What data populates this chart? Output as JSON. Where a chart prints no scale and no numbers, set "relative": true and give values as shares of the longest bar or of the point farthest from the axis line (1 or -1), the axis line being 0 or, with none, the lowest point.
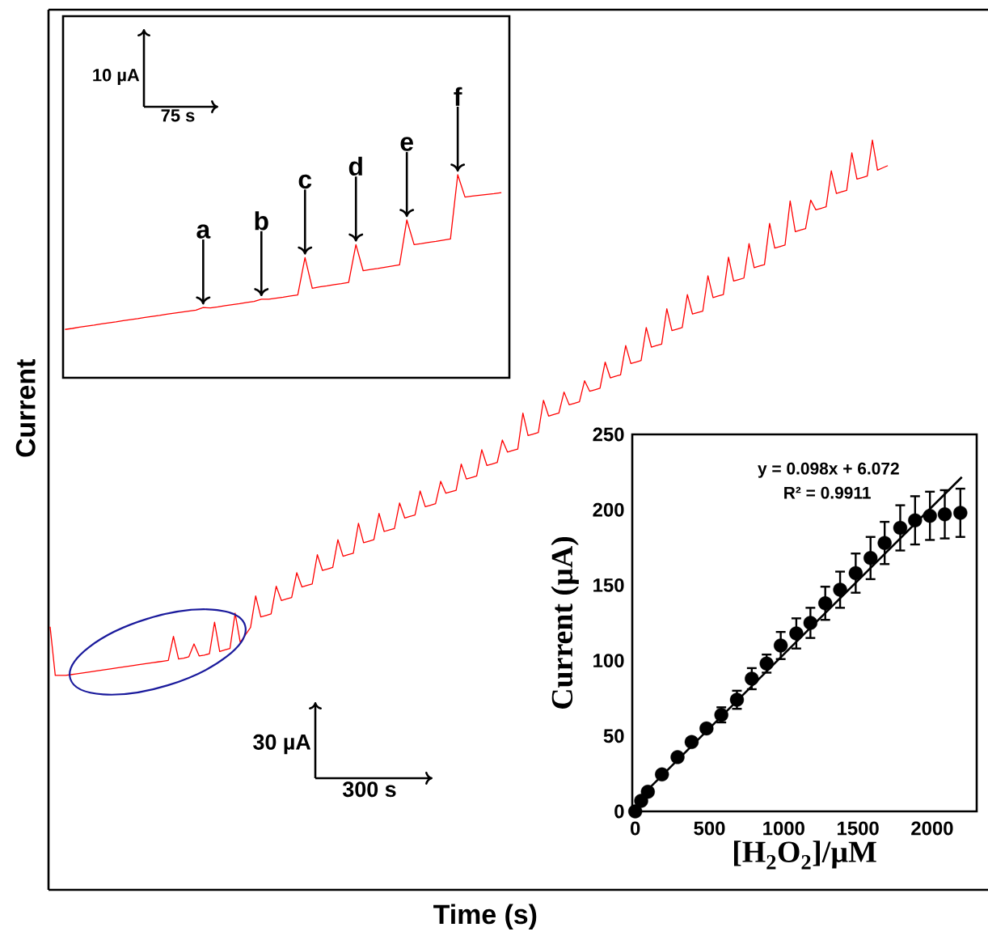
{
  "chart_data": [
    {
      "type": "line",
      "relative": true,
      "xlabel": "Time (s)",
      "ylabel": "Current",
      "categories": [
        null,
        null,
        null,
        null,
        null,
        null,
        null,
        null,
        null,
        null,
        null,
        null,
        null,
        null,
        null,
        null,
        null,
        null,
        null,
        null,
        null,
        null,
        null,
        null,
        null,
        null,
        null,
        null,
        null,
        null,
        null,
        null,
        null,
        null,
        null,
        null,
        null,
        null,
        null,
        null,
        null,
        null,
        null,
        null,
        null,
        null,
        null,
        null,
        null,
        null,
        null,
        null,
        null,
        null,
        null,
        null,
        null,
        null,
        null,
        null,
        null,
        null,
        null,
        null,
        null,
        null,
        null,
        null,
        null,
        null,
        null,
        null,
        null,
        null,
        null,
        null,
        null,
        null,
        null,
        null,
        null,
        null,
        null,
        null,
        null,
        null,
        null,
        null,
        null,
        null,
        null,
        null,
        null,
        null,
        null,
        null,
        null,
        null,
        null,
        null,
        null,
        null,
        null,
        null,
        null,
        null,
        null,
        null,
        null,
        null,
        null,
        null,
        null,
        null,
        null,
        null,
        null,
        null,
        null,
        null,
        null,
        null,
        null,
        null,
        null,
        null,
        null,
        null,
        null,
        null,
        null,
        null,
        null,
        null,
        null,
        null,
        null,
        null,
        null,
        null,
        null,
        null,
        null,
        null,
        null,
        null,
        null,
        null,
        null,
        null,
        null,
        null,
        null,
        null,
        null,
        null,
        null,
        null,
        null,
        null,
        null,
        null,
        null,
        null
      ],
      "series": [
        {
          "color": "#ff0000",
          "values": [
            0.351,
            0.286,
            0.286,
            0.286,
            0.287,
            0.288,
            0.289,
            0.29,
            0.291,
            0.292,
            0.293,
            0.294,
            0.295,
            0.296,
            0.297,
            0.298,
            0.299,
            0.3,
            0.301,
            0.302,
            0.303,
            0.304,
            0.305,
            0.306,
            0.338,
            0.308,
            0.309,
            0.311,
            0.328,
            0.312,
            0.313,
            0.315,
            0.357,
            0.318,
            0.32,
            0.322,
            0.369,
            0.33,
            0.34,
            0.35,
            0.392,
            0.364,
            0.366,
            0.368,
            0.405,
            0.386,
            0.388,
            0.39,
            0.423,
            0.404,
            0.406,
            0.408,
            0.447,
            0.426,
            0.428,
            0.43,
            0.467,
            0.445,
            0.447,
            0.449,
            0.489,
            0.463,
            0.465,
            0.467,
            0.502,
            0.478,
            0.48,
            0.482,
            0.516,
            0.496,
            0.498,
            0.5,
            0.532,
            0.511,
            0.513,
            0.515,
            0.545,
            0.529,
            0.531,
            0.533,
            0.568,
            0.548,
            0.55,
            0.552,
            0.587,
            0.566,
            0.568,
            0.57,
            0.6,
            0.584,
            0.586,
            0.588,
            0.636,
            0.606,
            0.608,
            0.61,
            0.653,
            0.632,
            0.634,
            0.636,
            0.664,
            0.647,
            0.649,
            0.651,
            0.679,
            0.665,
            0.667,
            0.669,
            0.704,
            0.683,
            0.685,
            0.687,
            0.726,
            0.702,
            0.704,
            0.706,
            0.75,
            0.724,
            0.726,
            0.728,
            0.775,
            0.746,
            0.748,
            0.75,
            0.794,
            0.768,
            0.77,
            0.772,
            0.819,
            0.79,
            0.792,
            0.794,
            0.844,
            0.812,
            0.814,
            0.816,
            0.862,
            0.83,
            0.832,
            0.834,
            0.889,
            0.856,
            0.858,
            0.86,
            0.919,
            0.878,
            0.88,
            0.882,
            0.92,
            0.907,
            0.909,
            0.911,
            0.959,
            0.929,
            0.931,
            0.933,
            0.983,
            0.948,
            0.95,
            0.952,
            1.0,
            0.96,
            0.963,
            0.966
          ]
        }
      ],
      "annotations": [
        "30 µA",
        "300 s"
      ]
    },
    {
      "type": "line",
      "relative": true,
      "categories": [
        null,
        null,
        null,
        null,
        null,
        null,
        null,
        null,
        null,
        null,
        null,
        null,
        null,
        null,
        null,
        null,
        null,
        null,
        null,
        null,
        null,
        null,
        null,
        null,
        null,
        null,
        null,
        null,
        null,
        null,
        null,
        null,
        null,
        null,
        null,
        null,
        null,
        null,
        null,
        null,
        null,
        null,
        null,
        null,
        null,
        null,
        null,
        null,
        null,
        null,
        null,
        null,
        null,
        null,
        null,
        null,
        null,
        null,
        null,
        null,
        null
      ],
      "series": [
        {
          "color": "#ff0000",
          "values": [
            0.238,
            0.243,
            0.249,
            0.254,
            0.259,
            0.265,
            0.27,
            0.275,
            0.281,
            0.286,
            0.291,
            0.297,
            0.302,
            0.307,
            0.313,
            0.318,
            0.323,
            0.328,
            0.333,
            0.346,
            0.344,
            0.349,
            0.355,
            0.36,
            0.365,
            0.371,
            0.376,
            0.387,
            0.387,
            0.392,
            0.397,
            0.403,
            0.408,
            0.592,
            0.441,
            0.448,
            0.453,
            0.459,
            0.464,
            0.47,
            0.656,
            0.527,
            0.533,
            0.538,
            0.544,
            0.55,
            0.556,
            0.777,
            0.656,
            0.661,
            0.667,
            0.672,
            0.678,
            0.684,
            1.0,
            0.89,
            0.895,
            0.899,
            0.903,
            0.907,
            0.912
          ]
        }
      ],
      "annotations": [
        "10 µA",
        "75 s",
        "a",
        "b",
        "c",
        "d",
        "e",
        "f"
      ]
    },
    {
      "type": "scatter",
      "xlabel": "[H$_{2}$O$_{2}$]/µM",
      "ylabel": "Current (µA)",
      "xlim": [
        -20,
        2300
      ],
      "ylim": [
        0,
        250
      ],
      "xticks": [
        0,
        500,
        1000,
        1500,
        2000
      ],
      "yticks": [
        0,
        50,
        100,
        150,
        200,
        250
      ],
      "marker": "circle",
      "series": [
        {
          "color": "#000000",
          "x": [
            0,
            40,
            85,
            180,
            285,
            380,
            480,
            580,
            685,
            785,
            885,
            980,
            1085,
            1180,
            1280,
            1380,
            1485,
            1585,
            1680,
            1785,
            1885,
            1985,
            2085,
            2190
          ],
          "values": [
            0,
            7,
            13,
            24.5,
            36,
            46,
            55,
            64,
            74,
            88,
            98,
            110,
            118,
            125,
            138,
            147,
            158,
            168,
            178,
            188,
            193,
            196,
            197,
            198
          ],
          "errors": [
            null,
            null,
            null,
            null,
            null,
            null,
            null,
            5,
            6,
            7,
            6,
            9,
            10,
            10,
            11,
            12,
            13,
            14,
            14,
            15,
            16,
            16,
            16,
            16
          ]
        },
        {
          "type": "line",
          "color": "#000000",
          "marker": "none",
          "x": [
            0,
            2200
          ],
          "values": [
            6.1,
            221.7
          ]
        }
      ],
      "annotations": [
        "y = 0.098x + 6.072",
        "R² = 0.9911"
      ]
    }
  ]
}
